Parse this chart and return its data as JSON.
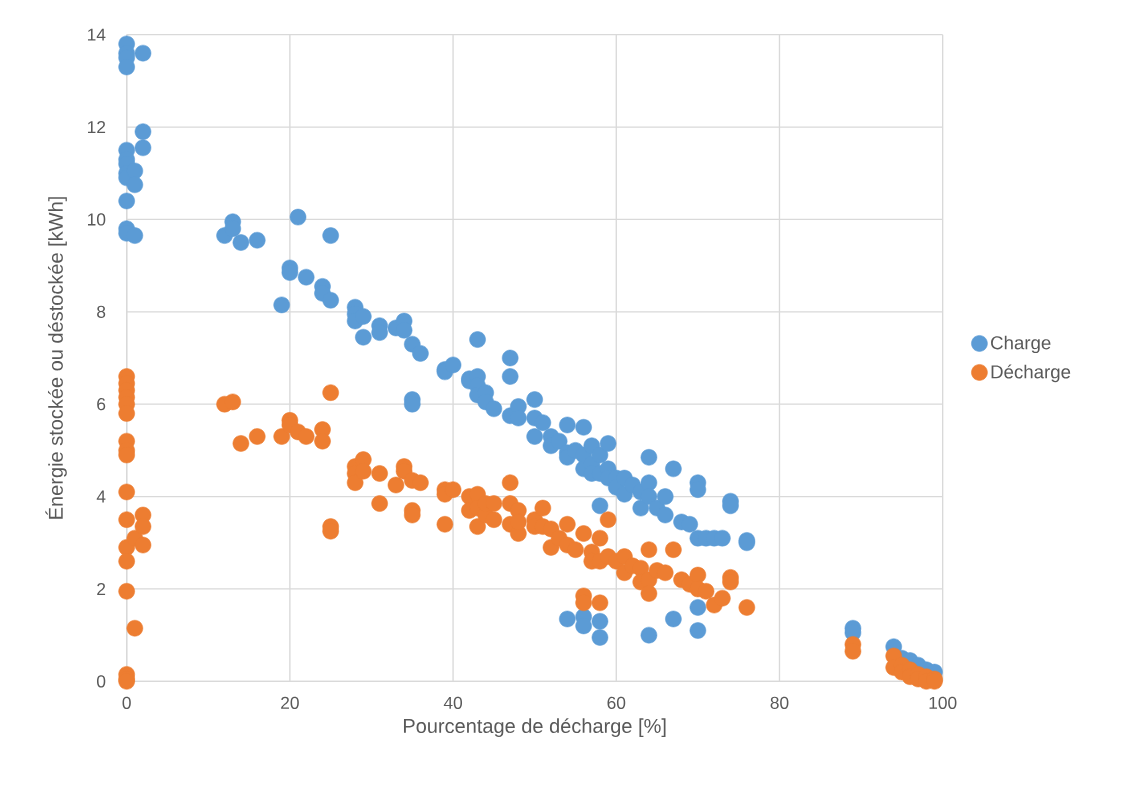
{
  "chart_data": {
    "type": "scatter",
    "xlabel": "Pourcentage de décharge [%]",
    "ylabel": "Énergie stockée ou déstockée [kWh]",
    "xlim": [
      0,
      100
    ],
    "ylim": [
      0,
      14
    ],
    "xticks": [
      0,
      20,
      40,
      60,
      80,
      100
    ],
    "yticks": [
      0,
      2,
      4,
      6,
      8,
      10,
      12,
      14
    ],
    "grid": true,
    "legend": "right",
    "marker": "circle",
    "series": [
      {
        "name": "Charge",
        "color": "#5b9bd5",
        "x": [
          0,
          0,
          0,
          0,
          0,
          0,
          0,
          0,
          0,
          0,
          0,
          0,
          1,
          1,
          1,
          2,
          2,
          2,
          12,
          13,
          13,
          14,
          16,
          19,
          20,
          20,
          21,
          22,
          24,
          24,
          25,
          25,
          28,
          28,
          28,
          29,
          29,
          31,
          31,
          33,
          34,
          34,
          35,
          35,
          35,
          36,
          39,
          39,
          40,
          42,
          42,
          43,
          43,
          43,
          43,
          44,
          44,
          45,
          47,
          47,
          47,
          48,
          48,
          50,
          50,
          50,
          51,
          52,
          52,
          53,
          54,
          54,
          54,
          54,
          55,
          56,
          56,
          56,
          56,
          56,
          57,
          57,
          57,
          58,
          58,
          58,
          58,
          58,
          59,
          59,
          59,
          60,
          60,
          61,
          61,
          62,
          63,
          63,
          64,
          64,
          64,
          64,
          65,
          66,
          66,
          67,
          67,
          68,
          69,
          70,
          70,
          70,
          70,
          70,
          71,
          72,
          73,
          74,
          74,
          76,
          76,
          89,
          89,
          94,
          95,
          96,
          97,
          98,
          99
        ],
        "values": [
          13.8,
          13.6,
          13.5,
          13.3,
          11.5,
          11.3,
          11.2,
          11.0,
          10.9,
          10.4,
          9.8,
          9.7,
          11.05,
          10.75,
          9.65,
          13.6,
          11.9,
          11.55,
          9.65,
          9.95,
          9.8,
          9.5,
          9.55,
          8.15,
          8.95,
          8.85,
          10.05,
          8.75,
          8.55,
          8.4,
          9.65,
          8.25,
          8.1,
          7.95,
          7.8,
          7.9,
          7.45,
          7.7,
          7.55,
          7.65,
          7.8,
          7.6,
          7.3,
          6.1,
          6.0,
          7.1,
          6.75,
          6.7,
          6.85,
          6.55,
          6.5,
          7.4,
          6.6,
          6.4,
          6.2,
          6.25,
          6.05,
          5.9,
          7.0,
          6.6,
          5.75,
          5.95,
          5.7,
          6.1,
          5.7,
          5.3,
          5.6,
          5.3,
          5.1,
          5.2,
          5.55,
          4.95,
          4.85,
          1.35,
          5.0,
          5.5,
          4.9,
          4.6,
          1.4,
          1.2,
          5.1,
          4.7,
          4.5,
          4.9,
          4.5,
          3.8,
          1.3,
          0.95,
          5.15,
          4.6,
          4.4,
          4.4,
          4.2,
          4.4,
          4.05,
          4.25,
          4.1,
          3.75,
          4.85,
          4.3,
          4.0,
          1.0,
          3.75,
          4.0,
          3.6,
          4.6,
          1.35,
          3.45,
          3.4,
          4.3,
          4.15,
          3.1,
          1.6,
          1.1,
          3.1,
          3.1,
          3.1,
          3.9,
          3.8,
          3.05,
          3.0,
          1.15,
          1.05,
          0.75,
          0.5,
          0.45,
          0.35,
          0.25,
          0.2
        ]
      },
      {
        "name": "Décharge",
        "color": "#ed7d31",
        "x": [
          0,
          0,
          0,
          0,
          0,
          0,
          0,
          0,
          0,
          0,
          0,
          0,
          0,
          0,
          0,
          0,
          0,
          1,
          1,
          2,
          2,
          2,
          12,
          13,
          14,
          16,
          19,
          20,
          20,
          21,
          22,
          24,
          24,
          25,
          25,
          25,
          28,
          28,
          28,
          29,
          29,
          31,
          31,
          33,
          34,
          34,
          35,
          35,
          35,
          36,
          39,
          39,
          39,
          40,
          42,
          42,
          43,
          43,
          43,
          44,
          44,
          45,
          45,
          47,
          47,
          47,
          48,
          48,
          48,
          50,
          50,
          51,
          51,
          52,
          52,
          53,
          54,
          54,
          55,
          56,
          56,
          56,
          57,
          57,
          58,
          58,
          58,
          59,
          59,
          60,
          61,
          61,
          62,
          63,
          63,
          64,
          64,
          64,
          65,
          66,
          67,
          68,
          69,
          70,
          70,
          71,
          72,
          73,
          74,
          74,
          76,
          89,
          89,
          94,
          94,
          95,
          95,
          96,
          96,
          97,
          97,
          98,
          98,
          99,
          99
        ],
        "values": [
          6.6,
          6.45,
          6.3,
          6.15,
          6.0,
          5.8,
          5.2,
          5.0,
          4.9,
          4.1,
          3.5,
          2.9,
          2.6,
          1.95,
          0.15,
          0.05,
          0.0,
          1.15,
          3.1,
          3.6,
          3.35,
          2.95,
          6.0,
          6.05,
          5.15,
          5.3,
          5.3,
          5.65,
          5.55,
          5.4,
          5.3,
          5.45,
          5.2,
          6.25,
          3.35,
          3.25,
          4.65,
          4.5,
          4.3,
          4.8,
          4.55,
          4.5,
          3.85,
          4.25,
          4.65,
          4.55,
          4.35,
          3.7,
          3.6,
          4.3,
          4.15,
          4.05,
          3.4,
          4.15,
          4.0,
          3.7,
          4.05,
          3.75,
          3.35,
          3.6,
          3.85,
          3.85,
          3.5,
          4.3,
          3.85,
          3.4,
          3.7,
          3.2,
          3.45,
          3.5,
          3.35,
          3.75,
          3.35,
          3.3,
          2.9,
          3.1,
          3.4,
          2.95,
          2.85,
          3.2,
          1.85,
          1.7,
          2.8,
          2.6,
          3.1,
          2.6,
          1.7,
          3.5,
          2.7,
          2.6,
          2.7,
          2.35,
          2.5,
          2.45,
          2.15,
          2.85,
          2.2,
          1.9,
          2.4,
          2.35,
          2.85,
          2.2,
          2.1,
          2.3,
          2.0,
          1.95,
          1.65,
          1.8,
          2.25,
          2.15,
          1.6,
          0.8,
          0.65,
          0.55,
          0.3,
          0.35,
          0.2,
          0.25,
          0.1,
          0.15,
          0.05,
          0.1,
          0.0,
          0.05,
          0.0
        ]
      }
    ]
  }
}
